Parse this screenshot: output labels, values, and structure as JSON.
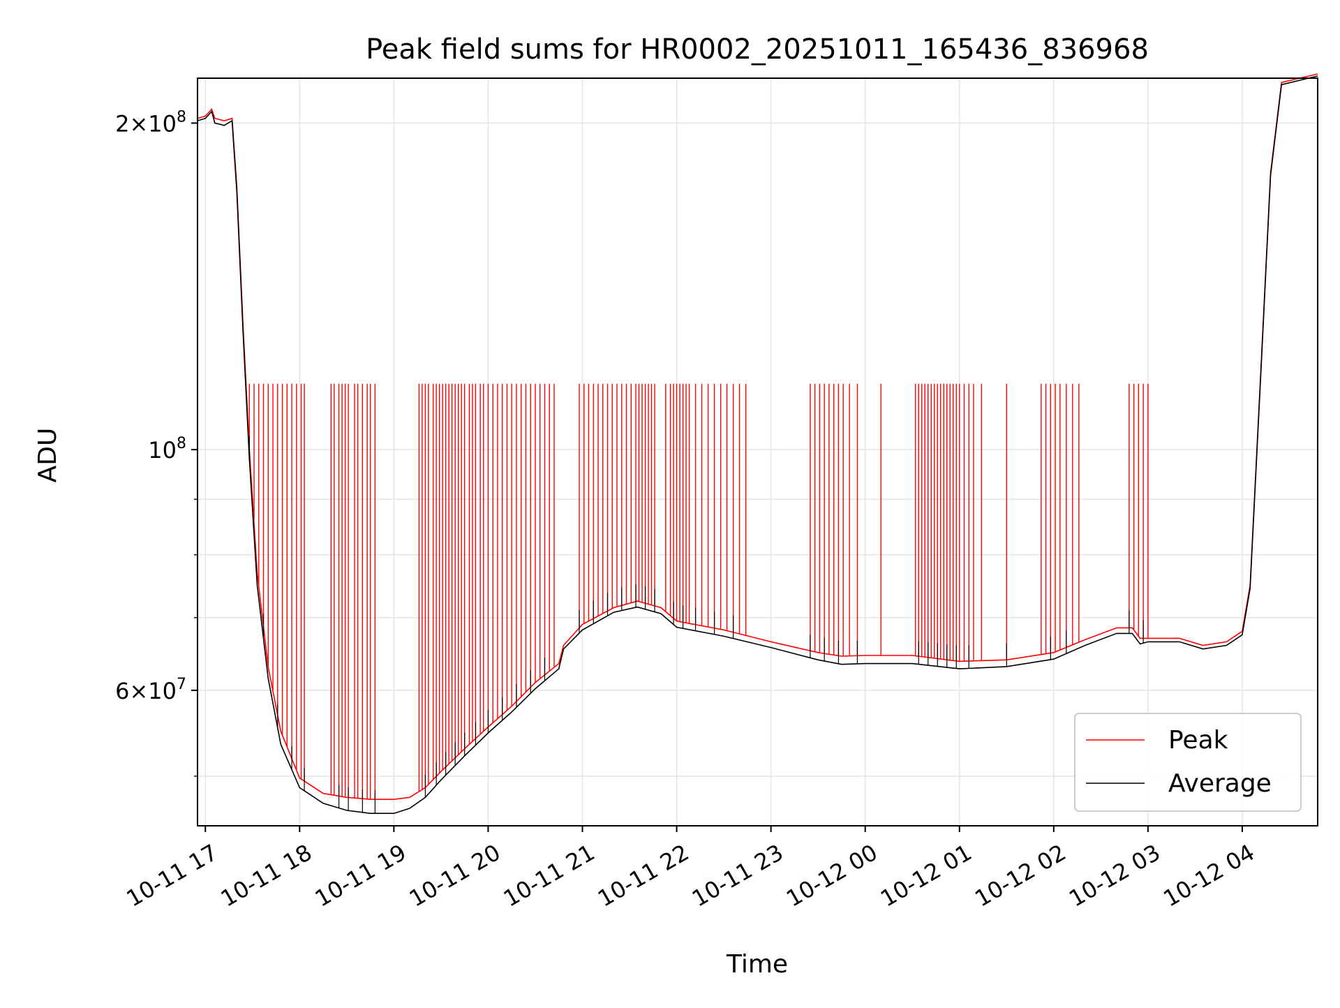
{
  "chart_data": {
    "type": "line",
    "title": "Peak field sums for HR0002_20251011_165436_836968",
    "xlabel": "Time",
    "ylabel": "ADU",
    "yscale": "log",
    "ylim": [
      45000000,
      220000000
    ],
    "xlim": [
      "2025-10-11 16:55",
      "2025-10-12 04:48"
    ],
    "x_ticks": [
      {
        "time": "2025-10-11 17:00",
        "label": "10-11 17"
      },
      {
        "time": "2025-10-11 18:00",
        "label": "10-11 18"
      },
      {
        "time": "2025-10-11 19:00",
        "label": "10-11 19"
      },
      {
        "time": "2025-10-11 20:00",
        "label": "10-11 20"
      },
      {
        "time": "2025-10-11 21:00",
        "label": "10-11 21"
      },
      {
        "time": "2025-10-11 22:00",
        "label": "10-11 22"
      },
      {
        "time": "2025-10-11 23:00",
        "label": "10-11 23"
      },
      {
        "time": "2025-10-12 00:00",
        "label": "10-12 00"
      },
      {
        "time": "2025-10-12 01:00",
        "label": "10-12 01"
      },
      {
        "time": "2025-10-12 02:00",
        "label": "10-12 02"
      },
      {
        "time": "2025-10-12 03:00",
        "label": "10-12 03"
      },
      {
        "time": "2025-10-12 04:00",
        "label": "10-12 04"
      }
    ],
    "y_major_ticks": [
      {
        "value": 60000000,
        "mantissa": "6",
        "exponent": "7"
      },
      {
        "value": 100000000,
        "mantissa": "",
        "exponent": "8"
      },
      {
        "value": 200000000,
        "mantissa": "2",
        "exponent": "8"
      }
    ],
    "y_minor_ticks": [
      50000000,
      70000000,
      80000000,
      90000000,
      300000000
    ],
    "grid": true,
    "legend_position": "lower right",
    "series": [
      {
        "name": "Peak",
        "color": "#ff0000",
        "spike_value": 115000000,
        "points": [
          [
            "2025-10-11 16:55",
            202000000
          ],
          [
            "2025-10-11 17:00",
            203000000
          ],
          [
            "2025-10-11 17:04",
            206000000
          ],
          [
            "2025-10-11 17:06",
            202000000
          ],
          [
            "2025-10-11 17:12",
            201000000
          ],
          [
            "2025-10-11 17:17",
            202000000
          ],
          [
            "2025-10-11 17:20",
            175000000
          ],
          [
            "2025-10-11 17:24",
            130000000
          ],
          [
            "2025-10-11 17:28",
            100000000
          ],
          [
            "2025-10-11 17:33",
            77000000
          ],
          [
            "2025-10-11 17:40",
            63000000
          ],
          [
            "2025-10-11 17:48",
            55000000
          ],
          [
            "2025-10-11 18:00",
            49800000
          ],
          [
            "2025-10-11 18:15",
            48200000
          ],
          [
            "2025-10-11 18:30",
            47800000
          ],
          [
            "2025-10-11 18:45",
            47600000
          ],
          [
            "2025-10-11 19:00",
            47600000
          ],
          [
            "2025-10-11 19:10",
            47800000
          ],
          [
            "2025-10-11 19:20",
            48800000
          ],
          [
            "2025-10-11 19:30",
            50500000
          ],
          [
            "2025-10-11 19:45",
            53000000
          ],
          [
            "2025-10-11 20:00",
            55500000
          ],
          [
            "2025-10-11 20:15",
            58000000
          ],
          [
            "2025-10-11 20:30",
            61000000
          ],
          [
            "2025-10-11 20:45",
            63500000
          ],
          [
            "2025-10-11 20:48",
            66000000
          ],
          [
            "2025-10-11 21:00",
            69000000
          ],
          [
            "2025-10-11 21:20",
            71500000
          ],
          [
            "2025-10-11 21:35",
            72500000
          ],
          [
            "2025-10-11 21:50",
            71500000
          ],
          [
            "2025-10-11 22:00",
            69500000
          ],
          [
            "2025-10-11 22:30",
            68200000
          ],
          [
            "2025-10-11 23:00",
            66500000
          ],
          [
            "2025-10-11 23:30",
            65000000
          ],
          [
            "2025-10-11 23:45",
            64500000
          ],
          [
            "2025-10-12 00:00",
            64600000
          ],
          [
            "2025-10-12 00:30",
            64600000
          ],
          [
            "2025-10-12 01:00",
            63800000
          ],
          [
            "2025-10-12 01:30",
            64000000
          ],
          [
            "2025-10-12 02:00",
            65000000
          ],
          [
            "2025-10-12 02:20",
            66800000
          ],
          [
            "2025-10-12 02:40",
            68500000
          ],
          [
            "2025-10-12 02:50",
            68500000
          ],
          [
            "2025-10-12 02:55",
            67000000
          ],
          [
            "2025-10-12 03:00",
            67000000
          ],
          [
            "2025-10-12 03:20",
            67000000
          ],
          [
            "2025-10-12 03:35",
            66000000
          ],
          [
            "2025-10-12 03:50",
            66500000
          ],
          [
            "2025-10-12 04:00",
            68000000
          ],
          [
            "2025-10-12 04:05",
            75000000
          ],
          [
            "2025-10-12 04:12",
            120000000
          ],
          [
            "2025-10-12 04:18",
            180000000
          ],
          [
            "2025-10-12 04:25",
            218000000
          ],
          [
            "2025-10-12 04:48",
            222000000
          ]
        ]
      },
      {
        "name": "Average",
        "color": "#000000",
        "points": [
          [
            "2025-10-11 16:55",
            201000000
          ],
          [
            "2025-10-11 17:00",
            202000000
          ],
          [
            "2025-10-11 17:04",
            205000000
          ],
          [
            "2025-10-11 17:06",
            200000000
          ],
          [
            "2025-10-11 17:12",
            199000000
          ],
          [
            "2025-10-11 17:17",
            201000000
          ],
          [
            "2025-10-11 17:20",
            173000000
          ],
          [
            "2025-10-11 17:24",
            128000000
          ],
          [
            "2025-10-11 17:28",
            98000000
          ],
          [
            "2025-10-11 17:33",
            75000000
          ],
          [
            "2025-10-11 17:40",
            61500000
          ],
          [
            "2025-10-11 17:48",
            53500000
          ],
          [
            "2025-10-11 18:00",
            48800000
          ],
          [
            "2025-10-11 18:15",
            47200000
          ],
          [
            "2025-10-11 18:30",
            46500000
          ],
          [
            "2025-10-11 18:45",
            46200000
          ],
          [
            "2025-10-11 19:00",
            46200000
          ],
          [
            "2025-10-11 19:10",
            46700000
          ],
          [
            "2025-10-11 19:20",
            47800000
          ],
          [
            "2025-10-11 19:30",
            49600000
          ],
          [
            "2025-10-11 19:45",
            52200000
          ],
          [
            "2025-10-11 20:00",
            54800000
          ],
          [
            "2025-10-11 20:15",
            57300000
          ],
          [
            "2025-10-11 20:30",
            60200000
          ],
          [
            "2025-10-11 20:45",
            62800000
          ],
          [
            "2025-10-11 20:48",
            65500000
          ],
          [
            "2025-10-11 21:00",
            68200000
          ],
          [
            "2025-10-11 21:20",
            70800000
          ],
          [
            "2025-10-11 21:35",
            71600000
          ],
          [
            "2025-10-11 21:50",
            70600000
          ],
          [
            "2025-10-11 22:00",
            68600000
          ],
          [
            "2025-10-11 22:30",
            67300000
          ],
          [
            "2025-10-11 23:00",
            65700000
          ],
          [
            "2025-10-11 23:30",
            64000000
          ],
          [
            "2025-10-11 23:45",
            63400000
          ],
          [
            "2025-10-12 00:00",
            63500000
          ],
          [
            "2025-10-12 00:30",
            63500000
          ],
          [
            "2025-10-12 01:00",
            62800000
          ],
          [
            "2025-10-12 01:30",
            63100000
          ],
          [
            "2025-10-12 02:00",
            64100000
          ],
          [
            "2025-10-12 02:20",
            66000000
          ],
          [
            "2025-10-12 02:40",
            67700000
          ],
          [
            "2025-10-12 02:50",
            67700000
          ],
          [
            "2025-10-12 02:55",
            66200000
          ],
          [
            "2025-10-12 03:00",
            66500000
          ],
          [
            "2025-10-12 03:20",
            66500000
          ],
          [
            "2025-10-12 03:35",
            65500000
          ],
          [
            "2025-10-12 03:50",
            66000000
          ],
          [
            "2025-10-12 04:00",
            67500000
          ],
          [
            "2025-10-12 04:05",
            74500000
          ],
          [
            "2025-10-12 04:12",
            119000000
          ],
          [
            "2025-10-12 04:18",
            179000000
          ],
          [
            "2025-10-12 04:25",
            217000000
          ],
          [
            "2025-10-12 04:48",
            221000000
          ]
        ]
      }
    ],
    "peak_spike_times": [
      "2025-10-11 17:28",
      "2025-10-11 17:31",
      "2025-10-11 17:34",
      "2025-10-11 17:37",
      "2025-10-11 17:40",
      "2025-10-11 17:43",
      "2025-10-11 17:46",
      "2025-10-11 17:49",
      "2025-10-11 17:52",
      "2025-10-11 17:55",
      "2025-10-11 17:58",
      "2025-10-11 18:01",
      "2025-10-11 18:03",
      "2025-10-11 18:20",
      "2025-10-11 18:22",
      "2025-10-11 18:25",
      "2025-10-11 18:27",
      "2025-10-11 18:29",
      "2025-10-11 18:31",
      "2025-10-11 18:35",
      "2025-10-11 18:37",
      "2025-10-11 18:40",
      "2025-10-11 18:43",
      "2025-10-11 18:45",
      "2025-10-11 18:48",
      "2025-10-11 19:16",
      "2025-10-11 19:18",
      "2025-10-11 19:20",
      "2025-10-11 19:22",
      "2025-10-11 19:25",
      "2025-10-11 19:27",
      "2025-10-11 19:29",
      "2025-10-11 19:31",
      "2025-10-11 19:33",
      "2025-10-11 19:35",
      "2025-10-11 19:37",
      "2025-10-11 19:39",
      "2025-10-11 19:41",
      "2025-10-11 19:43",
      "2025-10-11 19:45",
      "2025-10-11 19:48",
      "2025-10-11 19:50",
      "2025-10-11 19:52",
      "2025-10-11 19:55",
      "2025-10-11 19:57",
      "2025-10-11 20:00",
      "2025-10-11 20:03",
      "2025-10-11 20:06",
      "2025-10-11 20:09",
      "2025-10-11 20:12",
      "2025-10-11 20:15",
      "2025-10-11 20:18",
      "2025-10-11 20:21",
      "2025-10-11 20:24",
      "2025-10-11 20:27",
      "2025-10-11 20:30",
      "2025-10-11 20:33",
      "2025-10-11 20:36",
      "2025-10-11 20:39",
      "2025-10-11 20:42",
      "2025-10-11 20:58",
      "2025-10-11 21:01",
      "2025-10-11 21:04",
      "2025-10-11 21:07",
      "2025-10-11 21:10",
      "2025-10-11 21:13",
      "2025-10-11 21:16",
      "2025-10-11 21:19",
      "2025-10-11 21:22",
      "2025-10-11 21:25",
      "2025-10-11 21:28",
      "2025-10-11 21:31",
      "2025-10-11 21:34",
      "2025-10-11 21:36",
      "2025-10-11 21:38",
      "2025-10-11 21:40",
      "2025-10-11 21:42",
      "2025-10-11 21:44",
      "2025-10-11 21:46",
      "2025-10-11 21:53",
      "2025-10-11 21:56",
      "2025-10-11 21:58",
      "2025-10-11 22:00",
      "2025-10-11 22:02",
      "2025-10-11 22:04",
      "2025-10-11 22:06",
      "2025-10-11 22:08",
      "2025-10-11 22:12",
      "2025-10-11 22:16",
      "2025-10-11 22:20",
      "2025-10-11 22:24",
      "2025-10-11 22:28",
      "2025-10-11 22:32",
      "2025-10-11 22:36",
      "2025-10-11 22:40",
      "2025-10-11 22:44",
      "2025-10-11 23:25",
      "2025-10-11 23:28",
      "2025-10-11 23:31",
      "2025-10-11 23:34",
      "2025-10-11 23:37",
      "2025-10-11 23:40",
      "2025-10-11 23:43",
      "2025-10-11 23:46",
      "2025-10-11 23:50",
      "2025-10-11 23:55",
      "2025-10-12 00:10",
      "2025-10-12 00:32",
      "2025-10-12 00:34",
      "2025-10-12 00:36",
      "2025-10-12 00:38",
      "2025-10-12 00:40",
      "2025-10-12 00:42",
      "2025-10-12 00:44",
      "2025-10-12 00:46",
      "2025-10-12 00:48",
      "2025-10-12 00:50",
      "2025-10-12 00:52",
      "2025-10-12 00:54",
      "2025-10-12 00:56",
      "2025-10-12 00:58",
      "2025-10-12 01:00",
      "2025-10-12 01:03",
      "2025-10-12 01:06",
      "2025-10-12 01:09",
      "2025-10-12 01:14",
      "2025-10-12 01:30",
      "2025-10-12 01:52",
      "2025-10-12 01:55",
      "2025-10-12 01:58",
      "2025-10-12 02:01",
      "2025-10-12 02:04",
      "2025-10-12 02:08",
      "2025-10-12 02:12",
      "2025-10-12 02:16",
      "2025-10-12 02:48",
      "2025-10-12 02:51",
      "2025-10-12 02:54",
      "2025-10-12 02:57",
      "2025-10-12 03:00"
    ]
  }
}
